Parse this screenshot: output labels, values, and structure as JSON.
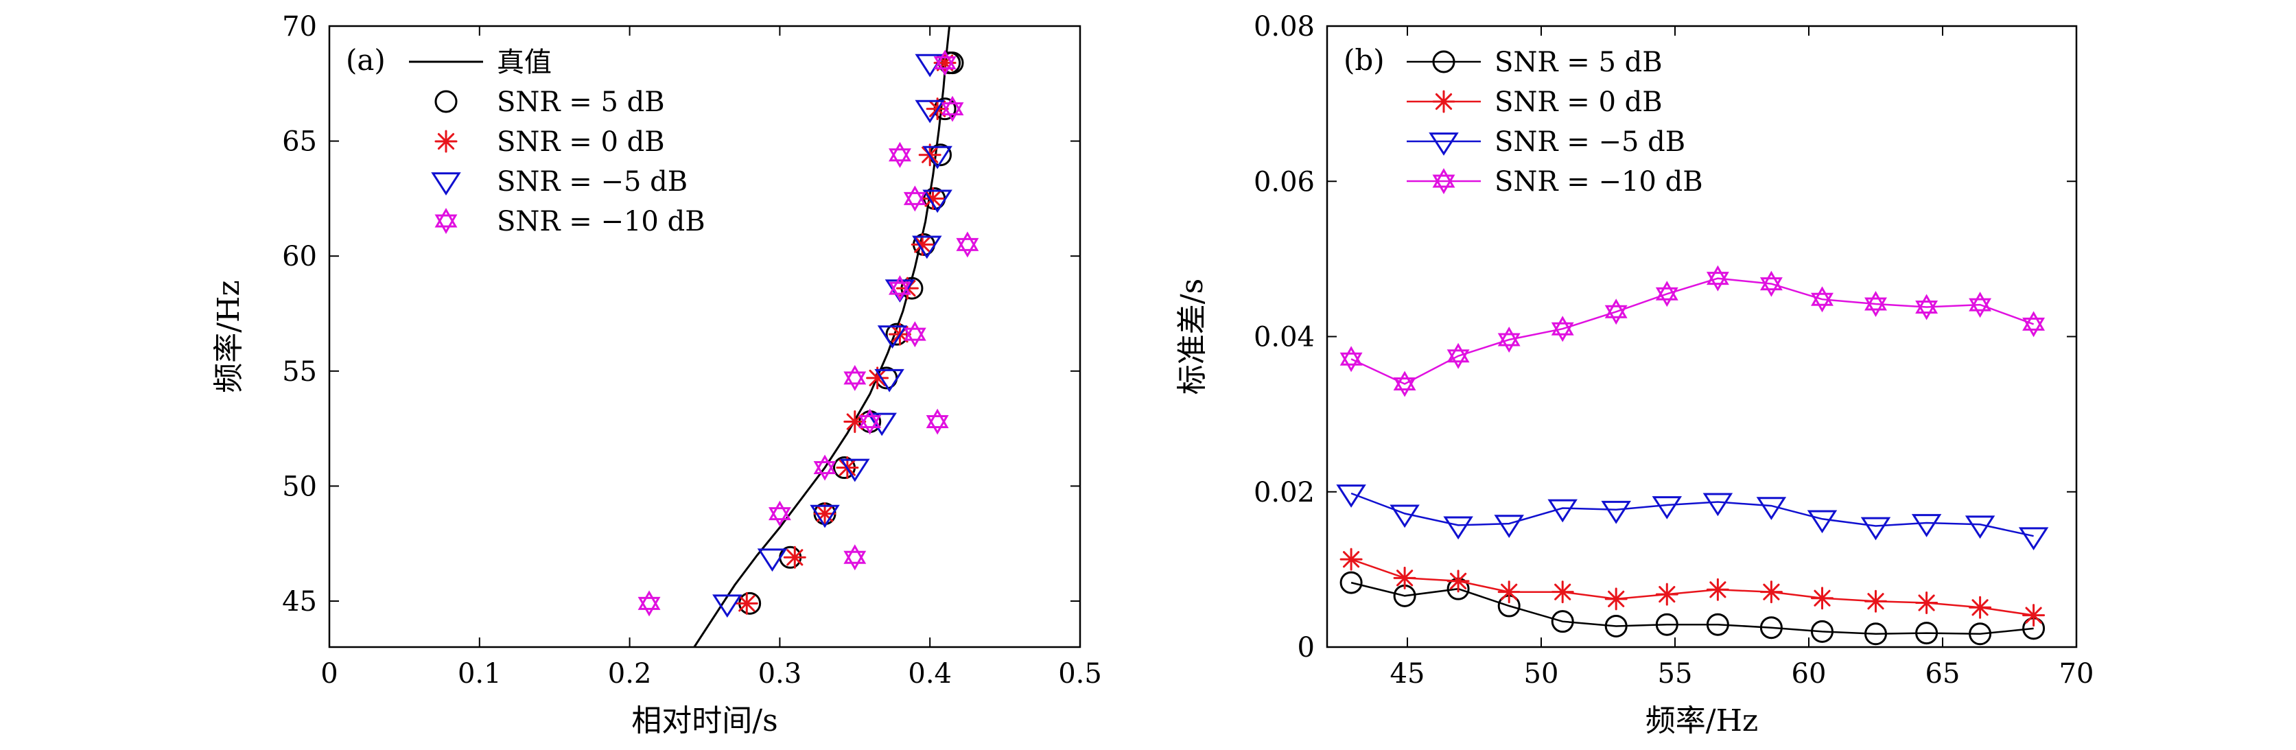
{
  "chart_data": [
    {
      "type": "scatter",
      "panel": "(a)",
      "xlabel": "相对时间/s",
      "ylabel": "频率/Hz",
      "xlim": [
        0,
        0.5
      ],
      "ylim": [
        43,
        70
      ],
      "xticks": [
        0,
        0.1,
        0.2,
        0.3,
        0.4,
        0.5
      ],
      "xtick_labels": [
        "0",
        "0.1",
        "0.2",
        "0.3",
        "0.4",
        "0.5"
      ],
      "yticks": [
        45,
        50,
        55,
        60,
        65,
        70
      ],
      "ytick_labels": [
        "45",
        "50",
        "55",
        "60",
        "65",
        "70"
      ],
      "legend_position": "top-left",
      "series": [
        {
          "name": "真值",
          "marker": "line",
          "color": "#000000",
          "x": [
            0.243,
            0.255,
            0.27,
            0.285,
            0.3,
            0.315,
            0.33,
            0.345,
            0.36,
            0.372,
            0.382,
            0.39,
            0.397,
            0.402,
            0.406,
            0.409,
            0.411,
            0.413
          ],
          "y": [
            43,
            44.2,
            45.7,
            47,
            48.2,
            49.5,
            50.8,
            52.3,
            54,
            55.8,
            57.6,
            59.5,
            61.5,
            63.5,
            65.5,
            67.3,
            68.8,
            70
          ]
        },
        {
          "name": "SNR = 5 dB",
          "marker": "circle",
          "color": "#000000",
          "x": [
            0.28,
            0.307,
            0.33,
            0.343,
            0.36,
            0.371,
            0.378,
            0.388,
            0.396,
            0.403,
            0.407,
            0.41,
            0.413,
            0.415
          ],
          "y": [
            44.9,
            46.9,
            48.8,
            50.8,
            52.8,
            54.7,
            56.6,
            58.6,
            60.5,
            62.5,
            64.4,
            66.4,
            68.4,
            68.4
          ]
        },
        {
          "name": "SNR = 0 dB",
          "marker": "asterisk",
          "color": "#e8141b",
          "x": [
            0.278,
            0.31,
            0.33,
            0.345,
            0.35,
            0.365,
            0.38,
            0.385,
            0.395,
            0.402,
            0.4,
            0.405,
            0.41
          ],
          "y": [
            44.9,
            46.9,
            48.8,
            50.8,
            52.8,
            54.7,
            56.6,
            58.6,
            60.5,
            62.5,
            64.4,
            66.4,
            68.4
          ]
        },
        {
          "name": "SNR = −5 dB",
          "marker": "triangle-down",
          "color": "#1010d0",
          "x": [
            0.265,
            0.295,
            0.33,
            0.35,
            0.368,
            0.373,
            0.375,
            0.38,
            0.398,
            0.405,
            0.405,
            0.4,
            0.4
          ],
          "y": [
            44.9,
            46.9,
            48.8,
            50.8,
            52.8,
            54.7,
            56.6,
            58.6,
            60.5,
            62.5,
            64.4,
            66.4,
            68.4
          ]
        },
        {
          "name": "SNR = −10 dB",
          "marker": "hexagram",
          "color": "#e010e0",
          "x": [
            0.213,
            0.35,
            0.3,
            0.33,
            0.36,
            0.35,
            0.39,
            0.38,
            0.425,
            0.39,
            0.38,
            0.415,
            0.41,
            0.405
          ],
          "y": [
            44.9,
            46.9,
            48.8,
            50.8,
            52.8,
            54.7,
            56.6,
            58.6,
            60.5,
            62.5,
            64.4,
            66.4,
            68.4,
            52.8
          ]
        }
      ]
    },
    {
      "type": "line",
      "panel": "(b)",
      "xlabel": "频率/Hz",
      "ylabel": "标准差/s",
      "xlim": [
        42,
        70
      ],
      "ylim": [
        0,
        0.08
      ],
      "xticks": [
        45,
        50,
        55,
        60,
        65,
        70
      ],
      "xtick_labels": [
        "45",
        "50",
        "55",
        "60",
        "65",
        "70"
      ],
      "yticks": [
        0,
        0.02,
        0.04,
        0.06,
        0.08
      ],
      "ytick_labels": [
        "0",
        "0.02",
        "0.04",
        "0.06",
        "0.08"
      ],
      "legend_position": "top-left",
      "x": [
        42.9,
        44.9,
        46.9,
        48.8,
        50.8,
        52.8,
        54.7,
        56.6,
        58.6,
        60.5,
        62.5,
        64.4,
        66.4,
        68.4
      ],
      "series": [
        {
          "name": "SNR = 5 dB",
          "marker": "circle",
          "color": "#000000",
          "values": [
            0.0083,
            0.0066,
            0.0075,
            0.0053,
            0.0033,
            0.0027,
            0.0029,
            0.0029,
            0.0025,
            0.002,
            0.0017,
            0.0018,
            0.0017,
            0.0024
          ]
        },
        {
          "name": "SNR = 0 dB",
          "marker": "asterisk",
          "color": "#e8141b",
          "values": [
            0.0113,
            0.0089,
            0.0085,
            0.0071,
            0.0071,
            0.0062,
            0.0068,
            0.0074,
            0.0071,
            0.0063,
            0.0059,
            0.0057,
            0.0051,
            0.0041
          ]
        },
        {
          "name": "SNR = −5 dB",
          "marker": "triangle-down",
          "color": "#1010d0",
          "values": [
            0.0198,
            0.0172,
            0.0157,
            0.0159,
            0.0179,
            0.0177,
            0.0183,
            0.0187,
            0.0182,
            0.0165,
            0.0156,
            0.016,
            0.0158,
            0.0143
          ]
        },
        {
          "name": "SNR = −10 dB",
          "marker": "hexagram",
          "color": "#e010e0",
          "values": [
            0.0371,
            0.0339,
            0.0375,
            0.0396,
            0.041,
            0.0432,
            0.0455,
            0.0475,
            0.0468,
            0.0448,
            0.0442,
            0.0438,
            0.0441,
            0.0416
          ]
        }
      ]
    }
  ]
}
